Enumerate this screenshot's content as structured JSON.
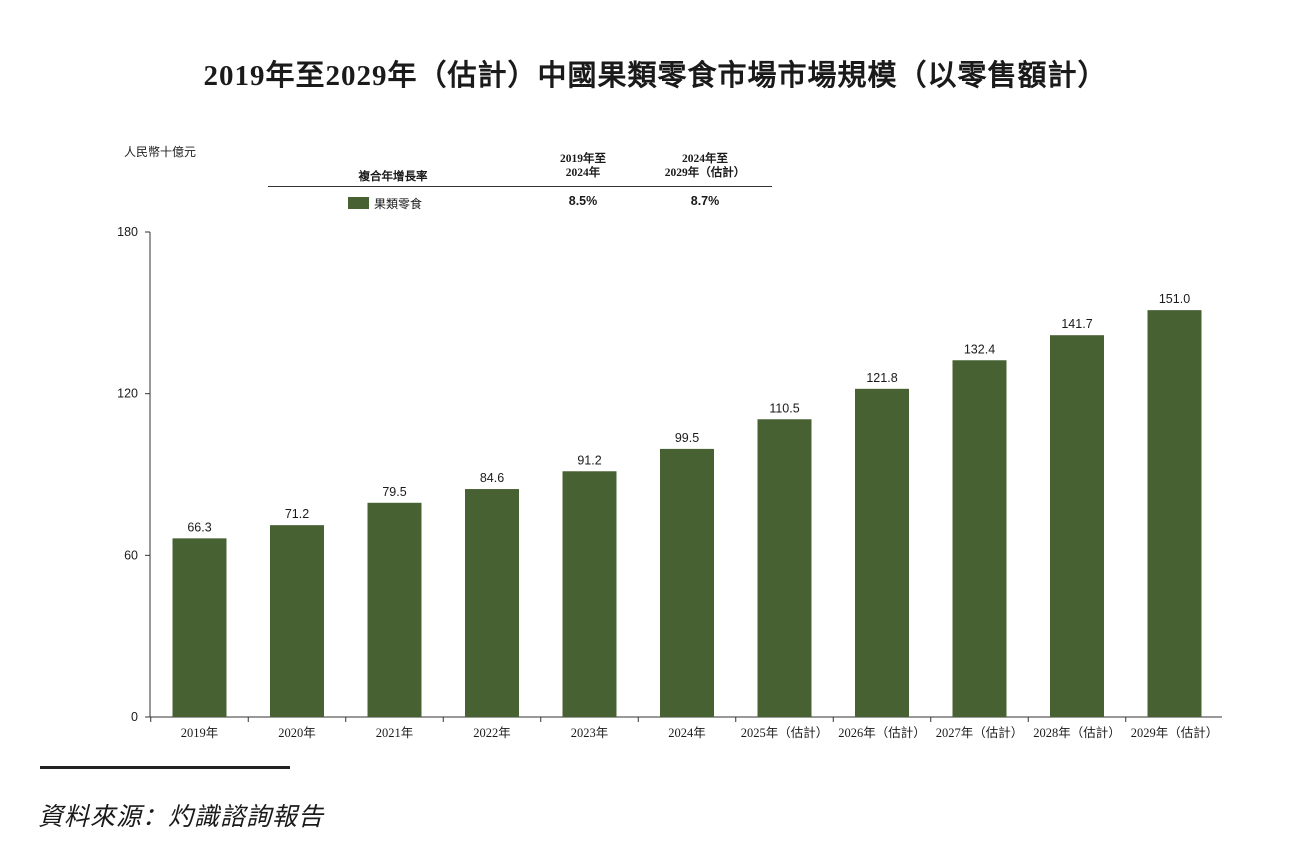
{
  "chart_data": {
    "type": "bar",
    "title": "2019年至2029年（估計）中國果類零食市場市場規模（以零售額計）",
    "unit_label": "人民幣十億元",
    "categories": [
      "2019年",
      "2020年",
      "2021年",
      "2022年",
      "2023年",
      "2024年",
      "2025年（估計）",
      "2026年（估計）",
      "2027年（估計）",
      "2028年（估計）",
      "2029年（估計）"
    ],
    "series": [
      {
        "name": "果類零食",
        "values": [
          66.3,
          71.2,
          79.5,
          84.6,
          91.2,
          99.5,
          110.5,
          121.8,
          132.4,
          141.7,
          151.0
        ],
        "value_labels": [
          "66.3",
          "71.2",
          "79.5",
          "84.6",
          "91.2",
          "99.5",
          "110.5",
          "121.8",
          "132.4",
          "141.7",
          "151.0"
        ],
        "color": "#486132"
      }
    ],
    "ylim": [
      0,
      180
    ],
    "y_ticks": [
      0,
      60,
      120,
      180
    ],
    "grid": false,
    "legend_placement": "top-left"
  },
  "cagr_table": {
    "header_label": "複合年增長率",
    "col1_header_line1": "2019年至",
    "col1_header_line2": "2024年",
    "col2_header_line1": "2024年至",
    "col2_header_line2": "2029年（估計）",
    "series_label": "果類零食",
    "col1_value": "8.5%",
    "col2_value": "8.7%"
  },
  "source_note": "資料來源：灼識諮詢報告"
}
